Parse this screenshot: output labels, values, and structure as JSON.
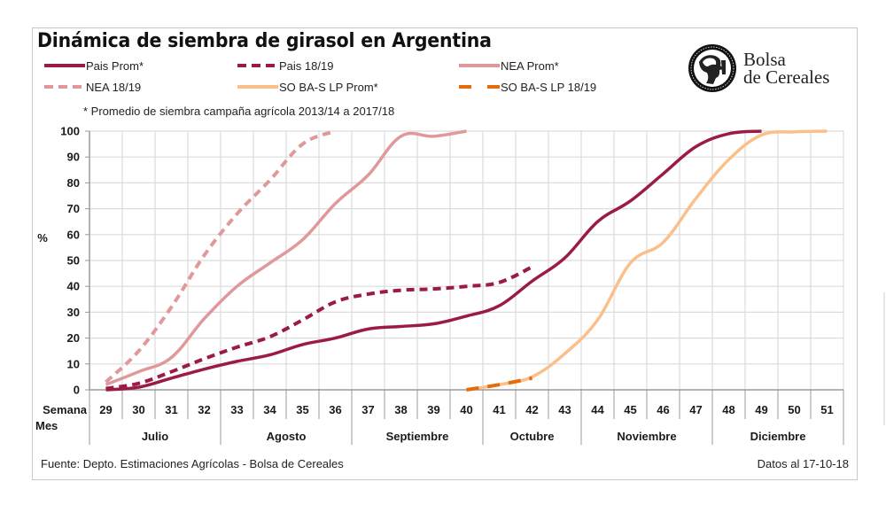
{
  "title": "Dinámica de siembra de girasol en Argentina",
  "note": "* Promedio de siembra campaña agrícola 2013/14  a 2017/18",
  "logo": {
    "icon": "bolsa-cereales-seal-icon",
    "line1": "Bolsa",
    "line2": "de Cereales"
  },
  "source": "Fuente: Depto. Estimaciones Agrícolas - Bolsa de Cereales",
  "date": "Datos al 17-10-18",
  "colors": {
    "pais": "#9b1b45",
    "nea": "#e0999a",
    "so_prom": "#fbbf8a",
    "so_1819": "#e46c0a",
    "grid": "#dcdcdc",
    "axis": "#9a9a9a"
  },
  "chart_data": {
    "type": "line",
    "title": "Dinámica de siembra de girasol en Argentina",
    "xlabel": "Semana / Mes",
    "ylabel": "%",
    "ylim": [
      0,
      100
    ],
    "yticks": [
      0,
      10,
      20,
      30,
      40,
      50,
      60,
      70,
      80,
      90,
      100
    ],
    "grid": true,
    "legend_position": "top",
    "x_row_label": "Semana",
    "month_row_label": "Mes",
    "x": [
      29,
      30,
      31,
      32,
      33,
      34,
      35,
      36,
      37,
      38,
      39,
      40,
      41,
      42,
      43,
      44,
      45,
      46,
      47,
      48,
      49,
      50,
      51
    ],
    "months": [
      {
        "label": "Julio",
        "span": 4
      },
      {
        "label": "Agosto",
        "span": 4
      },
      {
        "label": "Septiembre",
        "span": 4
      },
      {
        "label": "Octubre",
        "span": 3
      },
      {
        "label": "Noviembre",
        "span": 4
      },
      {
        "label": "Diciembre",
        "span": 4
      }
    ],
    "series": [
      {
        "name": "Pais Prom*",
        "color": "#9b1b45",
        "style": "solid",
        "values": [
          0,
          1,
          4.5,
          8,
          11,
          13.5,
          17.5,
          20,
          23.5,
          24.5,
          25.5,
          28.5,
          32.5,
          42,
          51,
          65,
          73,
          83.5,
          94,
          99,
          100,
          null,
          null
        ]
      },
      {
        "name": "Pais 18/19",
        "color": "#9b1b45",
        "style": "dash",
        "values": [
          0.5,
          2.5,
          7,
          12,
          16.5,
          20.5,
          27,
          34,
          37,
          38.5,
          39,
          40,
          41.5,
          47.5,
          null,
          null,
          null,
          null,
          null,
          null,
          null,
          null,
          null
        ]
      },
      {
        "name": "NEA Prom*",
        "color": "#e0999a",
        "style": "solid",
        "values": [
          2,
          7,
          12.5,
          27.5,
          40,
          49,
          58,
          72,
          83,
          98,
          98,
          100,
          null,
          null,
          null,
          null,
          null,
          null,
          null,
          null,
          null,
          null,
          null
        ]
      },
      {
        "name": "NEA 18/19",
        "color": "#e0999a",
        "style": "dash",
        "values": [
          3,
          15,
          32,
          52,
          68,
          81,
          95,
          100,
          null,
          null,
          null,
          null,
          null,
          null,
          null,
          null,
          null,
          null,
          null,
          null,
          null,
          null,
          null
        ]
      },
      {
        "name": "SO BA-S LP Prom*",
        "color": "#fbbf8a",
        "style": "solid",
        "values": [
          null,
          null,
          null,
          null,
          null,
          null,
          null,
          null,
          null,
          null,
          null,
          0,
          2,
          5,
          14,
          27,
          49,
          57,
          74,
          89,
          98.5,
          99.7,
          100
        ]
      },
      {
        "name": "SO BA-S LP 18/19",
        "color": "#e46c0a",
        "style": "longdash",
        "values": [
          null,
          null,
          null,
          null,
          null,
          null,
          null,
          null,
          null,
          null,
          null,
          0,
          2,
          4.5,
          null,
          null,
          null,
          null,
          null,
          null,
          null,
          null,
          null
        ]
      }
    ]
  }
}
